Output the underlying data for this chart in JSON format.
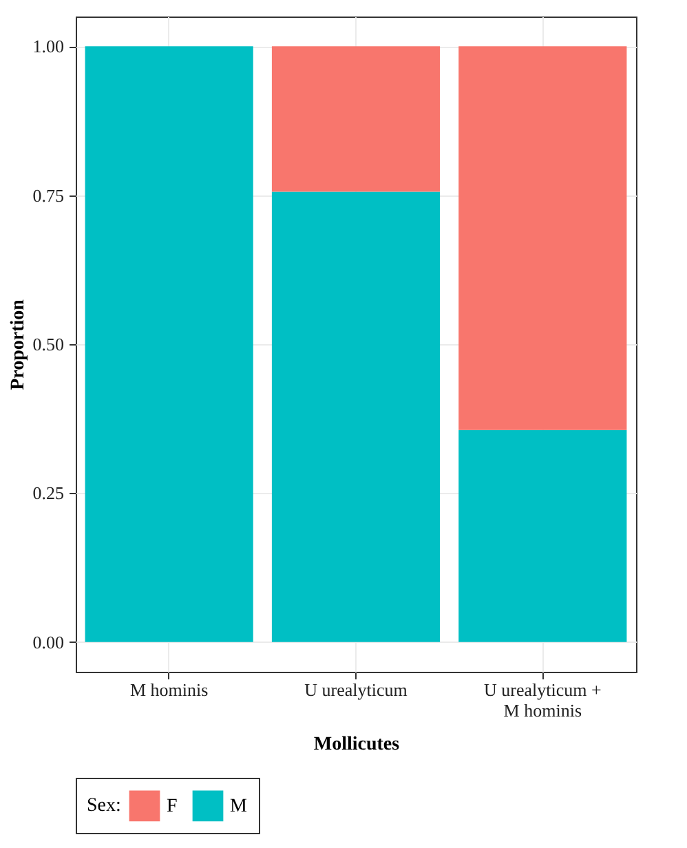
{
  "chart_data": {
    "type": "bar",
    "stacked": true,
    "xlabel": "Mollicutes",
    "ylabel": "Proportion",
    "legend_title": "Sex:",
    "categories": [
      "M hominis",
      "U urealyticum",
      "U urealyticum + M hominis"
    ],
    "series": [
      {
        "name": "M",
        "color": "#00bfc4",
        "values": [
          1.0,
          0.756,
          0.356
        ]
      },
      {
        "name": "F",
        "color": "#f8766d",
        "values": [
          0.0,
          0.244,
          0.644
        ]
      }
    ],
    "ylim": [
      -0.05,
      1.05
    ],
    "yticks": [
      {
        "value": 0,
        "label": "0.00"
      },
      {
        "value": 0.25,
        "label": "0.25"
      },
      {
        "value": 0.5,
        "label": "0.50"
      },
      {
        "value": 0.75,
        "label": "0.75"
      },
      {
        "value": 1,
        "label": "1.00"
      }
    ],
    "grid": true,
    "legend": "bottom"
  }
}
